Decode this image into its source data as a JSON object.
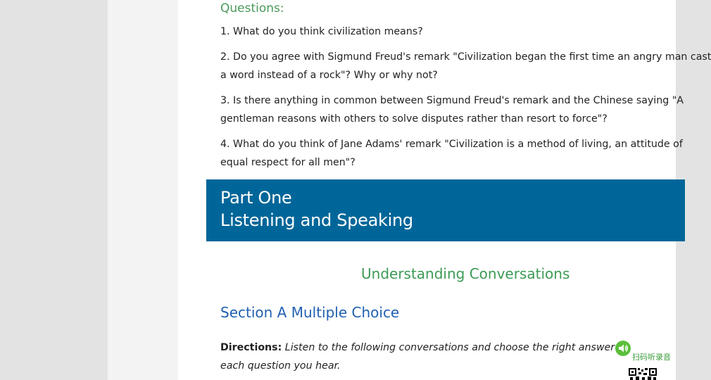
{
  "questions": {
    "heading": "Questions:",
    "items": [
      [
        "1. What do you think civilization means?"
      ],
      [
        "2. Do you agree with Sigmund Freud's remark \"Civilization began the first time an angry man cast",
        "a word instead of a rock\"? Why or why not?"
      ],
      [
        "3. Is there anything in common between Sigmund Freud's remark and the Chinese saying \"A",
        "gentleman reasons with others to solve disputes rather than resort to force\"?"
      ],
      [
        "4. What do you think of Jane Adams' remark \"Civilization is a method of living, an attitude of",
        "equal respect for all men\"?"
      ]
    ]
  },
  "banner": {
    "line1": "Part One",
    "line2": "Listening and Speaking",
    "color": "#006699"
  },
  "subtitle": "Understanding Conversations",
  "section_title": "Section A Multiple Choice",
  "directions": {
    "label": "Directions:",
    "text_line1": " Listen to the following conversations and choose the right answer to",
    "text_line2": "each question you hear."
  },
  "audio_widget": {
    "icon": "speaker-icon",
    "label": "扫码听录音"
  }
}
